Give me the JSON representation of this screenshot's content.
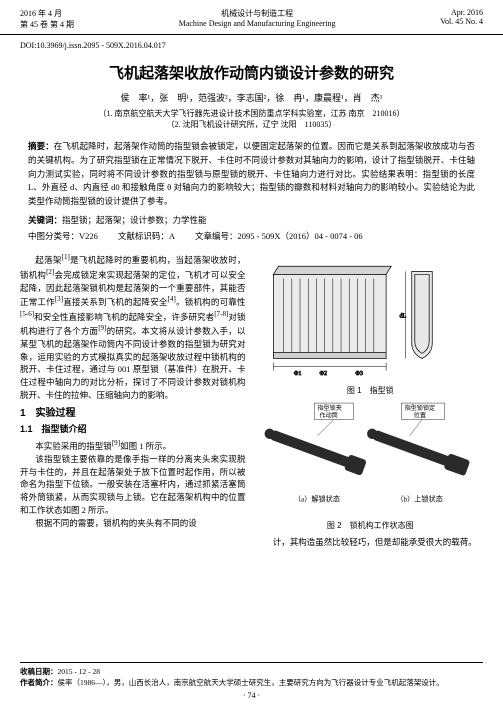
{
  "header": {
    "date_cn": "2016 年 4 月",
    "issue_cn": "第 45 卷 第 4 期",
    "journal_cn": "机械设计与制造工程",
    "journal_en": "Machine Design and Manufacturing Engineering",
    "date_en": "Apr. 2016",
    "issue_en": "Vol. 45 No. 4"
  },
  "doi": "DOI:10.3969/j.issn.2095 - 509X.2016.04.017",
  "title": "飞机起落架收放作动筒内锁设计参数的研究",
  "authors": "侯　率¹，张　明¹，范强波²，李志国²，徐　冉¹，康晨程¹，肖　杰¹",
  "affiliations": {
    "a1": "（1. 南京航空航天大学飞行器先进设计技术国防重点学科实验室，江苏 南京　210016）",
    "a2": "（2. 沈阳飞机设计研究所，辽宁 沈阳　110035）"
  },
  "abstract_label": "摘要：",
  "abstract_text": "在飞机起降时，起落架作动筒的指型锁会被锁定，以便固定起落架的位置。因而它是关系到起落架收放成功与否的关键机构。为了研究指型锁在正常情况下脱开、卡住时不同设计参数对其轴向力的影响，设计了指型锁脱开、卡住轴向力测试实验，同时将不同设计参数的指型锁与原型锁的脱开、卡住轴向力进行对比。实验结果表明：指型锁的长度 L、外直径 d、内直径 d0 和接触角度 θ 对轴向力的影响较大；指型锁的瓣数和材料对轴向力的影响较小。实验结论为此类型作动筒指型锁的设计提供了参考。",
  "keywords_label": "关键词：",
  "keywords_text": "指型锁；起落架；设计参数；力学性能",
  "class_cn": "中图分类号：V226",
  "class_doc": "文献标识码：A",
  "class_article": "文章编号：2095 - 509X（2016）04 - 0074 - 06",
  "body": {
    "p1": "起落架<sup>[1]</sup>是飞机起降时的重要机构，当起落架收放时，锁机构<sup>[2]</sup>会完成锁定来实现起落架的定位，飞机才可以安全起降，因此起落架锁机构是起落架的一个重要部件，其能否正常工作<sup>[3]</sup>直接关系到飞机的起降安全<sup>[4]</sup>。锁机构的可靠性<sup>[5-6]</sup>和安全性直接影响飞机的起降安全，许多研究者<sup>[7-8]</sup>对锁机构进行了各个方面<sup>[9]</sup>的研究。本文将从设计参数入手，以某型飞机的起落架作动筒内不同设计参数的指型锁为研究对象，运用实验的方式模拟真实的起落架收放过程中锁机构的脱开、卡住过程，通过与 001 原型锁（基准件）在脱开、卡住过程中轴向力的对比分析，探讨了不同设计参数对锁机构脱开、卡住的拉伸、压缩轴向力的影响。",
    "s1": "1　实验过程",
    "s11": "1.1　指型锁介绍",
    "p2": "本实验采用的指型锁<sup>[9]</sup>如图 1 所示。",
    "p3": "该指型锁主要依靠的是像手指一样的分离夹头来实现脱开与卡住的，并且在起落架处于放下位置时起作用，所以被命名为指型下位锁。一般安装在活塞杆内，通过抓紧活塞筒将外筒锁紧，从而实现锁与上锁。它在起落架机构中的位置和工作状态如图 2 所示。",
    "p4": "根据不同的需要，锁机构的夹头有不同的设",
    "p5": "计，其构造虽然比较轻巧，但是却能承受很大的载荷。"
  },
  "figures": {
    "fig1_caption": "图 1　指型锁",
    "fig1_labels": {
      "dL": "dL",
      "dL1": "dL",
      "phi1": "Φ1",
      "phi2": "Φ2",
      "phi3": "Φ3",
      "d": "d",
      "d0": "d0"
    },
    "fig2_caption": "图 2　锁机构工作状态图",
    "fig2_a": "（a）解锁状态",
    "fig2_b": "（b）上锁状态",
    "fig2_label1": "指型锁夹\n作动筒",
    "fig2_label2": "指型锁锁定\n位置"
  },
  "footer": {
    "recv_label": "收稿日期：",
    "recv": "2015 - 12 - 28",
    "author_label": "作者简介：",
    "author": "侯率（1986—），男，山西长治人，南京航空航天大学硕士研究生，主要研究方向为飞行器设计专业飞机起落架设计。"
  },
  "page": "· 74 ·"
}
